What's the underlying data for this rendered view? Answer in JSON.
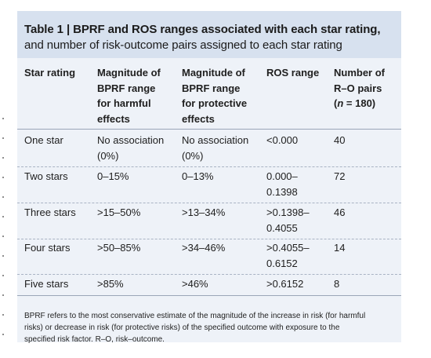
{
  "table": {
    "title_bold": "Table 1 | BPRF and ROS ranges associated with each star rating,",
    "title_rest": "and number of risk-outcome pairs assigned to each star rating",
    "headers": {
      "star_rating": "Star rating",
      "harmful": [
        "Magnitude of",
        "BPRF range",
        "for harmful",
        "effects"
      ],
      "protective": [
        "Magnitude of",
        "BPRF range",
        "for protective",
        "effects"
      ],
      "ros": "ROS range",
      "pairs": [
        "Number of",
        "R–O pairs"
      ],
      "pairs_n_open": "(",
      "pairs_n_var": "n",
      "pairs_n_value": " = 180)"
    },
    "rows": [
      {
        "rating": "One star",
        "harmful": [
          "No association",
          "(0%)"
        ],
        "protective": [
          "No association",
          "(0%)"
        ],
        "ros": [
          "<0.000"
        ],
        "pairs": "40"
      },
      {
        "rating": "Two stars",
        "harmful": [
          "0–15%"
        ],
        "protective": [
          "0–13%"
        ],
        "ros": [
          "0.000–",
          "0.1398"
        ],
        "pairs": "72"
      },
      {
        "rating": "Three stars",
        "harmful": [
          ">15–50%"
        ],
        "protective": [
          ">13–34%"
        ],
        "ros": [
          ">0.1398–",
          "0.4055"
        ],
        "pairs": "46"
      },
      {
        "rating": "Four stars",
        "harmful": [
          ">50–85%"
        ],
        "protective": [
          ">34–46%"
        ],
        "ros": [
          ">0.4055–",
          "0.6152"
        ],
        "pairs": "14"
      },
      {
        "rating": "Five stars",
        "harmful": [
          ">85%"
        ],
        "protective": [
          ">46%"
        ],
        "ros": [
          ">0.6152"
        ],
        "pairs": "8"
      }
    ],
    "footnote": [
      "BPRF refers to the most conservative estimate of the magnitude of the increase in risk (for harmful",
      "risks) or decrease in risk (for protective risks) of the specified outcome with exposure to the",
      "specified risk factor. R–O, risk–outcome."
    ]
  }
}
